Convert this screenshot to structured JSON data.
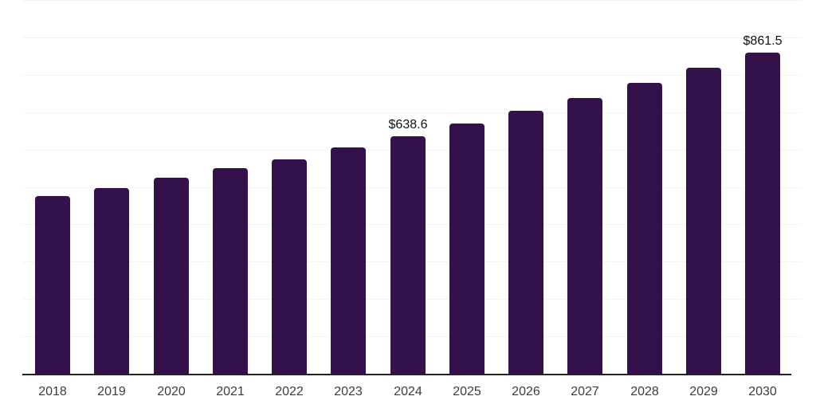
{
  "chart_data": {
    "type": "bar",
    "title": "",
    "xlabel": "",
    "ylabel": "",
    "categories": [
      "2018",
      "2019",
      "2020",
      "2021",
      "2022",
      "2023",
      "2024",
      "2025",
      "2026",
      "2027",
      "2028",
      "2029",
      "2030"
    ],
    "values": [
      477,
      500,
      526,
      552,
      576,
      608,
      638.6,
      671,
      705,
      741,
      781,
      822,
      861.5
    ],
    "data_labels": [
      {
        "category": "2024",
        "text": "$638.6"
      },
      {
        "category": "2030",
        "text": "$861.5"
      }
    ],
    "ylim": [
      0,
      1000
    ],
    "gridline_step": 100,
    "grid": "horizontal",
    "legend_position": "none",
    "colors": {
      "bar": "#34114a",
      "gridline": "#f4f4f4",
      "axis_line": "#222222",
      "tick_label": "#3d3d3d",
      "data_label": "#111111",
      "background": "#ffffff"
    }
  }
}
